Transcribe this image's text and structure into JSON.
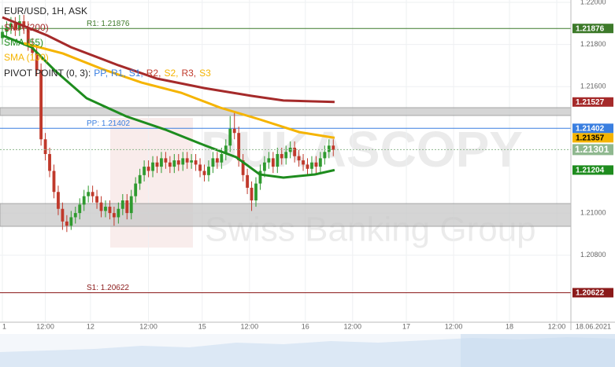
{
  "chart_data": {
    "type": "candlestick",
    "title": "EUR/USD, 1H, ASK",
    "watermark": [
      "DUKASCOPY",
      "Swiss Banking Group"
    ],
    "xlim": [
      0,
      142
    ],
    "xticks": [
      {
        "value": 0,
        "label": "1"
      },
      {
        "value": 10,
        "label": "12:00"
      },
      {
        "value": 20.5,
        "label": "12"
      },
      {
        "value": 34,
        "label": "12:00"
      },
      {
        "value": 46.5,
        "label": "15"
      },
      {
        "value": 57.5,
        "label": "12:00"
      },
      {
        "value": 70.5,
        "label": "16"
      },
      {
        "value": 81.5,
        "label": "12:00"
      },
      {
        "value": 94,
        "label": "17"
      },
      {
        "value": 105,
        "label": "12:00"
      },
      {
        "value": 118,
        "label": "18"
      },
      {
        "value": 129,
        "label": "12:00"
      },
      {
        "value": 137.5,
        "label": "18.06.2021"
      }
    ],
    "ylim": [
      1.20482,
      1.22011
    ],
    "yticks": [
      {
        "value": 1.22,
        "label": "1.22000"
      },
      {
        "value": 1.218,
        "label": "1.21800"
      },
      {
        "value": 1.216,
        "label": "1.21600"
      },
      {
        "value": 1.21,
        "label": "1.21000"
      },
      {
        "value": 1.208,
        "label": "1.20800"
      }
    ],
    "grid": true,
    "up_color": "#2f9a2f",
    "down_color": "#c0392b",
    "open": [
      1.2183,
      1.2186,
      1.2188,
      1.219,
      1.2187,
      1.2191,
      1.2188,
      1.218,
      1.2176,
      1.2168,
      1.2135,
      1.2128,
      1.212,
      1.211,
      1.2102,
      1.2096,
      1.2094,
      1.2098,
      1.21,
      1.2104,
      1.2108,
      1.211,
      1.2108,
      1.2105,
      1.2101,
      1.2103,
      1.21,
      1.2098,
      1.2102,
      1.2106,
      1.21,
      1.2108,
      1.2114,
      1.2118,
      1.2122,
      1.212,
      1.2124,
      1.2122,
      1.2126,
      1.2124,
      1.2122,
      1.2125,
      1.2123,
      1.2126,
      1.2124,
      1.2125,
      1.2123,
      1.212,
      1.2118,
      1.2122,
      1.2126,
      1.2124,
      1.2128,
      1.2132,
      1.214,
      1.2138,
      1.2125,
      1.2118,
      1.2112,
      1.2106,
      1.2114,
      1.212,
      1.2124,
      1.2126,
      1.2122,
      1.2128,
      1.2126,
      1.2129,
      1.2131,
      1.2127,
      1.2125,
      1.2123,
      1.2121,
      1.2124,
      1.2122,
      1.2126,
      1.2129,
      1.2132
    ],
    "high": [
      1.2189,
      1.2191,
      1.2193,
      1.2193,
      1.2194,
      1.2194,
      1.2191,
      1.2183,
      1.2179,
      1.2171,
      1.2138,
      1.2131,
      1.2123,
      1.2113,
      1.2105,
      1.2099,
      1.2101,
      1.2103,
      1.2107,
      1.2111,
      1.2113,
      1.2113,
      1.2111,
      1.2108,
      1.2106,
      1.2106,
      1.2103,
      1.2105,
      1.2109,
      1.2109,
      1.2111,
      1.2117,
      1.2121,
      1.2125,
      1.2125,
      1.2127,
      1.2127,
      1.2129,
      1.2129,
      1.2127,
      1.2128,
      1.2128,
      1.2129,
      1.2129,
      1.2128,
      1.2128,
      1.2126,
      1.2123,
      1.2125,
      1.2129,
      1.2129,
      1.2131,
      1.2135,
      1.2146,
      1.2148,
      1.2141,
      1.2128,
      1.2121,
      1.2115,
      1.2117,
      1.2123,
      1.2127,
      1.2129,
      1.2129,
      1.2131,
      1.2131,
      1.2132,
      1.2134,
      1.2134,
      1.213,
      1.2128,
      1.2126,
      1.2127,
      1.2127,
      1.2129,
      1.2132,
      1.2135,
      1.2135
    ],
    "low": [
      1.218,
      1.2183,
      1.2185,
      1.2184,
      1.2184,
      1.2185,
      1.2177,
      1.2173,
      1.2165,
      1.2132,
      1.2125,
      1.2117,
      1.2107,
      1.2099,
      1.2092,
      1.2091,
      1.2092,
      1.2095,
      1.2097,
      1.2101,
      1.2105,
      1.2105,
      1.2102,
      1.2098,
      1.2098,
      1.2097,
      1.2094,
      1.2095,
      1.2099,
      1.2097,
      1.2097,
      1.2105,
      1.2111,
      1.2115,
      1.2117,
      1.2117,
      1.2119,
      1.2119,
      1.2121,
      1.2119,
      1.2119,
      1.212,
      1.212,
      1.2121,
      1.2121,
      1.212,
      1.2117,
      1.2115,
      1.2115,
      1.2119,
      1.2121,
      1.2121,
      1.2125,
      1.2129,
      1.2135,
      1.2122,
      1.2115,
      1.2109,
      1.2101,
      1.2103,
      1.2111,
      1.2117,
      1.2121,
      1.2119,
      1.2119,
      1.2123,
      1.2123,
      1.2126,
      1.2124,
      1.2122,
      1.212,
      1.2118,
      1.2118,
      1.2119,
      1.2119,
      1.2123,
      1.2126,
      1.2127
    ],
    "close": [
      1.2186,
      1.2188,
      1.219,
      1.2187,
      1.2191,
      1.2188,
      1.218,
      1.2176,
      1.2168,
      1.2135,
      1.2128,
      1.212,
      1.211,
      1.2102,
      1.2096,
      1.2094,
      1.2098,
      1.21,
      1.2104,
      1.2108,
      1.211,
      1.2108,
      1.2105,
      1.2101,
      1.2103,
      1.21,
      1.2098,
      1.2102,
      1.2106,
      1.21,
      1.2108,
      1.2114,
      1.2118,
      1.2122,
      1.212,
      1.2124,
      1.2122,
      1.2126,
      1.2124,
      1.2122,
      1.2125,
      1.2123,
      1.2126,
      1.2124,
      1.2125,
      1.2123,
      1.212,
      1.2118,
      1.2122,
      1.2126,
      1.2124,
      1.2128,
      1.2132,
      1.214,
      1.2138,
      1.2125,
      1.2118,
      1.2112,
      1.2106,
      1.2114,
      1.212,
      1.2124,
      1.2126,
      1.2122,
      1.2128,
      1.2126,
      1.2129,
      1.2131,
      1.2127,
      1.2125,
      1.2123,
      1.2121,
      1.2124,
      1.2122,
      1.2126,
      1.2129,
      1.2132,
      1.213
    ],
    "series": [
      {
        "name": "SMA (200)",
        "color": "#a52a2a",
        "tag_text": "#ffffff",
        "x": [
          0,
          10.4,
          16,
          27,
          36,
          47,
          58,
          65.4,
          77.3
        ],
        "values": [
          1.21929,
          1.21843,
          1.21787,
          1.21701,
          1.21638,
          1.21593,
          1.21556,
          1.21534,
          1.21527
        ],
        "last_label": "1.21527"
      },
      {
        "name": "SMA (55)",
        "color": "#1e8c1e",
        "tag_text": "#ffffff",
        "x": [
          0,
          6.8,
          12.3,
          19.6,
          28.8,
          37.9,
          47.1,
          54.4,
          59.9,
          65.4,
          72.7,
          77.3
        ],
        "values": [
          1.21843,
          1.21787,
          1.21675,
          1.21545,
          1.21459,
          1.21396,
          1.21321,
          1.21265,
          1.21183,
          1.21168,
          1.21183,
          1.21204
        ],
        "last_label": "1.21204"
      },
      {
        "name": "SMA (100)",
        "color": "#f5b400",
        "tag_text": "#000000",
        "x": [
          5,
          14.1,
          23.3,
          32.4,
          41.6,
          50.7,
          59.9,
          69.1,
          77.3
        ],
        "values": [
          1.21806,
          1.21757,
          1.21683,
          1.21619,
          1.21571,
          1.215,
          1.21444,
          1.21384,
          1.21357
        ],
        "last_label": "1.21357"
      }
    ],
    "pivot": {
      "title": "PIVOT POINT (0, 3):",
      "items": [
        {
          "label": "PP,",
          "color": "#3a7fe0"
        },
        {
          "label": "R1,",
          "color": "#3a7fe0"
        },
        {
          "label": "S1,",
          "color": "#3a7fe0"
        },
        {
          "label": "R2,",
          "color": "#c0392b"
        },
        {
          "label": "S2,",
          "color": "#f5b400"
        },
        {
          "label": "R3,",
          "color": "#c0392b"
        },
        {
          "label": "S3",
          "color": "#f5b400"
        }
      ]
    },
    "levels": [
      {
        "label": "R1: 1.21876",
        "value": 1.21876,
        "tag": "1.21876",
        "color": "#3d7a2a"
      },
      {
        "label": "PP: 1.21402",
        "value": 1.21402,
        "tag": "1.21402",
        "color": "#3a7fe0"
      },
      {
        "label": "S1: 1.20622",
        "value": 1.20622,
        "tag": "1.20622",
        "color": "#8b1a1a"
      }
    ],
    "zones": [
      {
        "from": 1.21463,
        "to": 1.215
      },
      {
        "from": 1.20937,
        "to": 1.21045
      }
    ],
    "current": {
      "value": 1.21301,
      "label": "1.21301",
      "color": "#8fb88f"
    }
  }
}
